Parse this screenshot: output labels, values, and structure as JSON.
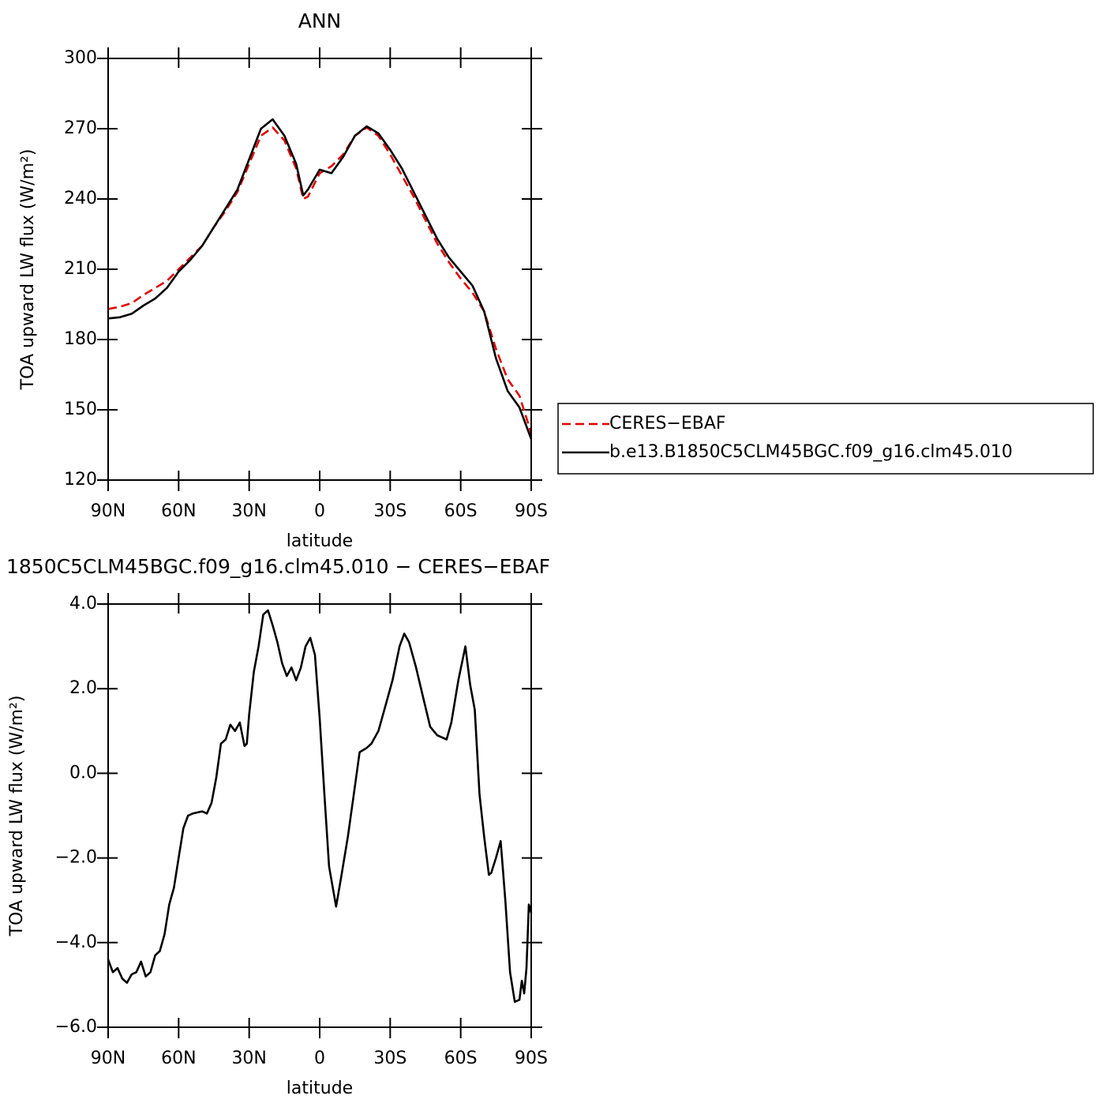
{
  "chart_data": [
    {
      "type": "line",
      "title": "ANN",
      "ylabel": "TOA upward LW flux (W/m²)",
      "xlabel": "latitude",
      "x": [
        90,
        85,
        80,
        75,
        70,
        65,
        60,
        55,
        50,
        45,
        40,
        35,
        30,
        25,
        20,
        15,
        10,
        7,
        5,
        0,
        -5,
        -10,
        -15,
        -20,
        -25,
        -30,
        -35,
        -40,
        -45,
        -50,
        -55,
        -60,
        -65,
        -70,
        -75,
        -80,
        -85,
        -90
      ],
      "series": [
        {
          "name": "CERES−EBAF",
          "color": "#e00000",
          "dash": true,
          "values": [
            193,
            194,
            195.5,
            199,
            202,
            205,
            210,
            215,
            220,
            228,
            235,
            243,
            255,
            267,
            270.5,
            265,
            253,
            240,
            241,
            251,
            254,
            259,
            267,
            270.5,
            267,
            259,
            250,
            241,
            231,
            221,
            213,
            206,
            200,
            192,
            176,
            163,
            156,
            140
          ]
        },
        {
          "name": "b.e13.B1850C5CLM45BGC.f09_g16.clm45.010",
          "color": "#000000",
          "dash": false,
          "values": [
            189,
            189.5,
            191,
            194.5,
            197.5,
            202,
            209,
            214,
            220,
            228,
            236,
            244,
            257,
            270,
            274,
            267,
            255,
            241.5,
            244,
            252.5,
            251,
            258,
            267,
            271,
            268,
            261,
            253,
            243,
            233,
            223,
            215,
            209,
            203,
            192,
            172,
            158,
            151,
            137.5
          ]
        }
      ],
      "xlim": [
        90,
        -90
      ],
      "xticks": [
        {
          "value": 90,
          "label": "90N"
        },
        {
          "value": 60,
          "label": "60N"
        },
        {
          "value": 30,
          "label": "30N"
        },
        0,
        {
          "value": -30,
          "label": "30S"
        },
        {
          "value": -60,
          "label": "60S"
        },
        {
          "value": -90,
          "label": "90S"
        }
      ],
      "ylim": [
        120,
        300
      ],
      "yticks": [
        120,
        150,
        180,
        210,
        240,
        270,
        300
      ],
      "legend": "right"
    },
    {
      "type": "line",
      "title": "1850C5CLM45BGC.f09_g16.clm45.010 − CERES−EBAF",
      "ylabel": "TOA upward LW flux (W/m²)",
      "xlabel": "latitude",
      "x": [
        90,
        88,
        86,
        84,
        82,
        80,
        78,
        76,
        74,
        72,
        70,
        68,
        66,
        64,
        62,
        60,
        58,
        56,
        54,
        50,
        48,
        46,
        44,
        42,
        40,
        38,
        36,
        34,
        32,
        31,
        30,
        28,
        26,
        24,
        22,
        20,
        18,
        16,
        14,
        12,
        10,
        8,
        6,
        4,
        2,
        0,
        -2,
        -4,
        -7,
        -9,
        -12,
        -15,
        -17,
        -20,
        -22,
        -25,
        -28,
        -31,
        -34,
        -36,
        -38,
        -41,
        -44,
        -47,
        -50,
        -54,
        -56,
        -59,
        -62,
        -64,
        -66,
        -68,
        -70,
        -72,
        -73,
        -75,
        -77,
        -79,
        -81,
        -83,
        -85,
        -86,
        -87,
        -88,
        -89,
        -90
      ],
      "color": "#000000",
      "values": [
        -4.4,
        -4.7,
        -4.6,
        -4.85,
        -4.95,
        -4.75,
        -4.7,
        -4.45,
        -4.8,
        -4.7,
        -4.3,
        -4.2,
        -3.8,
        -3.1,
        -2.7,
        -2.0,
        -1.3,
        -1.0,
        -0.95,
        -0.9,
        -0.95,
        -0.7,
        -0.1,
        0.7,
        0.8,
        1.15,
        1.0,
        1.2,
        0.65,
        0.7,
        1.4,
        2.4,
        3.0,
        3.75,
        3.85,
        3.5,
        3.1,
        2.6,
        2.3,
        2.5,
        2.2,
        2.5,
        3.0,
        3.2,
        2.8,
        1.3,
        -0.5,
        -2.2,
        -3.15,
        -2.5,
        -1.5,
        -0.3,
        0.5,
        0.6,
        0.7,
        1.0,
        1.6,
        2.2,
        3.0,
        3.3,
        3.1,
        2.5,
        1.8,
        1.1,
        0.9,
        0.8,
        1.2,
        2.2,
        3.0,
        2.1,
        1.5,
        -0.5,
        -1.5,
        -2.4,
        -2.35,
        -2.0,
        -1.6,
        -3.0,
        -4.7,
        -5.4,
        -5.35,
        -4.9,
        -5.2,
        -4.6,
        -3.1,
        -3.3
      ],
      "xlim": [
        90,
        -90
      ],
      "xticks": [
        {
          "value": 90,
          "label": "90N"
        },
        {
          "value": 60,
          "label": "60N"
        },
        {
          "value": 30,
          "label": "30N"
        },
        0,
        {
          "value": -30,
          "label": "30S"
        },
        {
          "value": -60,
          "label": "60S"
        },
        {
          "value": -90,
          "label": "90S"
        }
      ],
      "ylim": [
        -6,
        4
      ],
      "yticks": [
        {
          "value": -6,
          "label": "−6.0"
        },
        {
          "value": -4,
          "label": "−4.0"
        },
        {
          "value": -2,
          "label": "−2.0"
        },
        {
          "value": 0,
          "label": "0.0"
        },
        {
          "value": 2,
          "label": "2.0"
        },
        {
          "value": 4,
          "label": "4.0"
        }
      ]
    }
  ]
}
